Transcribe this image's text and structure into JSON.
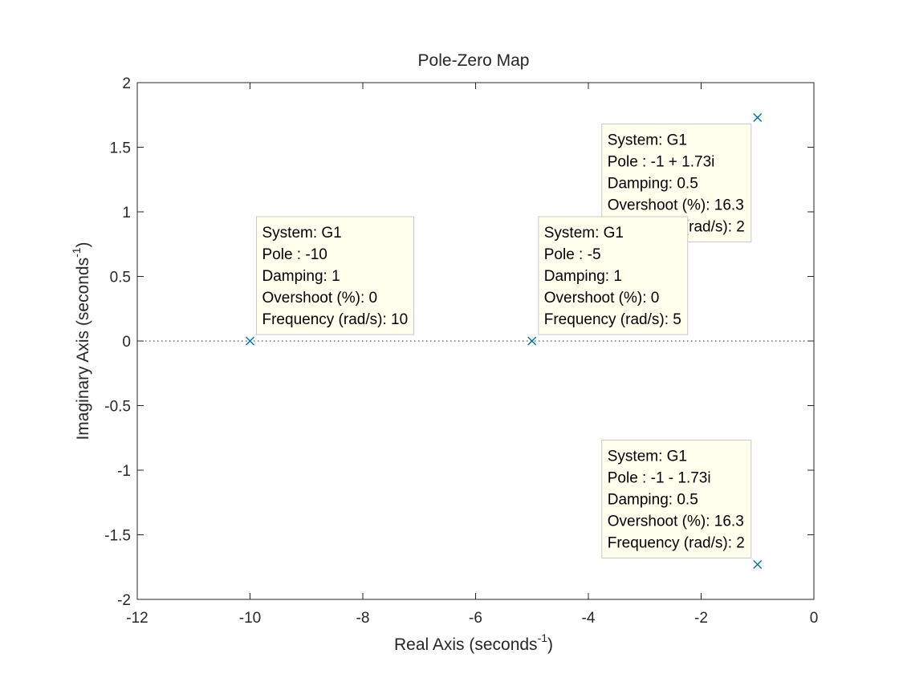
{
  "chart_data": {
    "type": "scatter",
    "title": "Pole-Zero Map",
    "xlabel": "Real Axis (seconds",
    "ylabel": "Imaginary Axis (seconds",
    "label_exponent": "-1",
    "label_close": ")",
    "xlim": [
      -12,
      0
    ],
    "ylim": [
      -2,
      2
    ],
    "xticks": [
      -12,
      -10,
      -8,
      -6,
      -4,
      -2,
      0
    ],
    "yticks": [
      -2,
      -1.5,
      -1,
      -0.5,
      0,
      0.5,
      1,
      1.5,
      2
    ],
    "grid": false,
    "zero_line": "dotted",
    "marker": "x",
    "marker_color": "#0072BD",
    "series": [
      {
        "points": [
          {
            "x": -1,
            "y": 1.73
          },
          {
            "x": -1,
            "y": -1.73
          },
          {
            "x": -5,
            "y": 0
          },
          {
            "x": -10,
            "y": 0
          }
        ]
      }
    ],
    "datatips": [
      {
        "point": 0,
        "lines": [
          "System: G1",
          "Pole : -1 + 1.73i",
          "Damping: 0.5",
          "Overshoot (%): 16.3",
          "Frequency (rad/s): 2"
        ]
      },
      {
        "point": 2,
        "lines": [
          "System: G1",
          "Pole : -5",
          "Damping: 1",
          "Overshoot (%): 0",
          "Frequency (rad/s): 5"
        ]
      },
      {
        "point": 3,
        "lines": [
          "System: G1",
          "Pole : -10",
          "Damping: 1",
          "Overshoot (%): 0",
          "Frequency (rad/s): 10"
        ]
      },
      {
        "point": 1,
        "lines": [
          "System: G1",
          "Pole : -1 - 1.73i",
          "Damping: 0.5",
          "Overshoot (%): 16.3",
          "Frequency (rad/s): 2"
        ]
      }
    ],
    "datatip_background": "#FFFFEE"
  }
}
